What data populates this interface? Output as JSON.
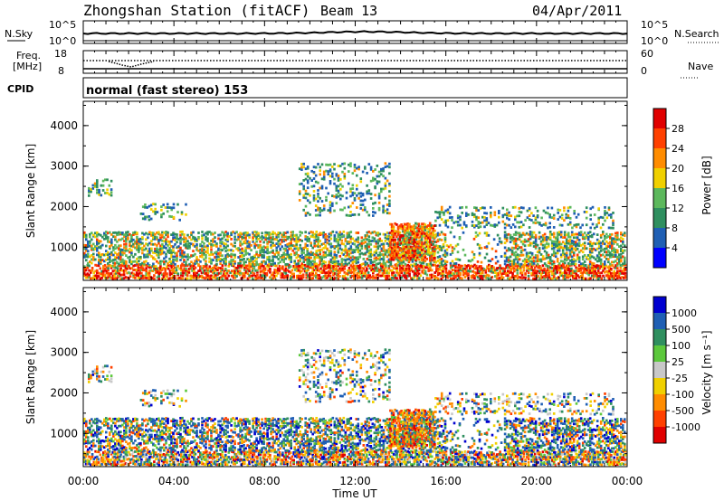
{
  "header": {
    "station": "Zhongshan Station (fitACF)",
    "beam": "Beam 13",
    "date": "04/Apr/2011"
  },
  "panels": {
    "nsky": {
      "label": "N.Sky",
      "ticks": [
        "10^5",
        "10^0"
      ]
    },
    "nsearch": {
      "label": "N.Search",
      "ticks": [
        "10^5",
        "10^0"
      ]
    },
    "freq": {
      "label_line1": "Freq.",
      "label_line2": "[MHz]",
      "ticks": [
        "18",
        "8"
      ]
    },
    "nave": {
      "label": "Nave",
      "ticks": [
        "60",
        "0"
      ]
    },
    "cpid": {
      "label": "CPID",
      "mode": "normal (fast stereo) 153"
    }
  },
  "colors": {
    "power": [
      "#0000ff",
      "#1f5fb4",
      "#2f8f5f",
      "#5cb85c",
      "#f0d000",
      "#ff8c00",
      "#ff4000",
      "#e00000"
    ],
    "velocity": [
      "#e00000",
      "#ff4000",
      "#ff8c00",
      "#f0d000",
      "#c8c8c8",
      "#5cc83c",
      "#2f8f5f",
      "#1f5fb4",
      "#0000d0"
    ]
  },
  "chart_data": [
    {
      "type": "heatmap",
      "name": "power",
      "ylabel": "Slant Range [km]",
      "yticks": [
        "4000",
        "3000",
        "2000",
        "1000"
      ],
      "ylim": [
        180,
        4600
      ],
      "colorbar_label": "Power [dB]",
      "colorbar_ticks": [
        "28",
        "24",
        "20",
        "16",
        "12",
        "8",
        "4"
      ],
      "colorbar_range": [
        0,
        32
      ]
    },
    {
      "type": "heatmap",
      "name": "velocity",
      "ylabel": "Slant Range [km]",
      "yticks": [
        "4000",
        "3000",
        "2000",
        "1000"
      ],
      "ylim": [
        180,
        4600
      ],
      "colorbar_label": "Velocity [m s⁻¹]",
      "colorbar_ticks": [
        "1000",
        "500",
        "100",
        "25",
        "-25",
        "-100",
        "-500",
        "-1000"
      ]
    }
  ],
  "xaxis": {
    "label": "Time UT",
    "ticks": [
      "00:00",
      "04:00",
      "08:00",
      "12:00",
      "16:00",
      "20:00",
      "00:00"
    ],
    "range_hours": [
      0,
      24
    ]
  }
}
